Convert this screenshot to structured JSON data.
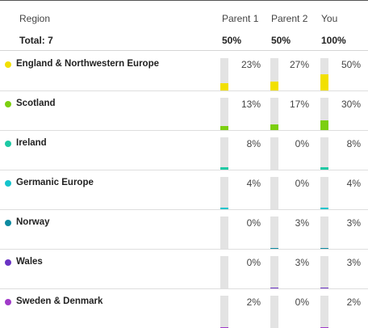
{
  "header": {
    "region_label": "Region",
    "parent1_label": "Parent 1",
    "parent2_label": "Parent 2",
    "you_label": "You",
    "total_label": "Total: 7",
    "parent1_total": "50%",
    "parent2_total": "50%",
    "you_total": "100%"
  },
  "rows": [
    {
      "name": "England & Northwestern Europe",
      "color": "#f2e000",
      "p1": 23,
      "p2": 27,
      "you": 50,
      "p1_text": "23%",
      "p2_text": "27%",
      "you_text": "50%"
    },
    {
      "name": "Scotland",
      "color": "#7ccf10",
      "p1": 13,
      "p2": 17,
      "you": 30,
      "p1_text": "13%",
      "p2_text": "17%",
      "you_text": "30%"
    },
    {
      "name": "Ireland",
      "color": "#1dc9a4",
      "p1": 8,
      "p2": 0,
      "you": 8,
      "p1_text": "8%",
      "p2_text": "0%",
      "you_text": "8%"
    },
    {
      "name": "Germanic Europe",
      "color": "#14c4cc",
      "p1": 4,
      "p2": 0,
      "you": 4,
      "p1_text": "4%",
      "p2_text": "0%",
      "you_text": "4%"
    },
    {
      "name": "Norway",
      "color": "#0c8aa0",
      "p1": 0,
      "p2": 3,
      "you": 3,
      "p1_text": "0%",
      "p2_text": "3%",
      "you_text": "3%"
    },
    {
      "name": "Wales",
      "color": "#6a33c4",
      "p1": 0,
      "p2": 3,
      "you": 3,
      "p1_text": "0%",
      "p2_text": "3%",
      "you_text": "3%"
    },
    {
      "name": "Sweden & Denmark",
      "color": "#a03ac8",
      "p1": 2,
      "p2": 0,
      "you": 2,
      "p1_text": "2%",
      "p2_text": "0%",
      "you_text": "2%"
    }
  ]
}
